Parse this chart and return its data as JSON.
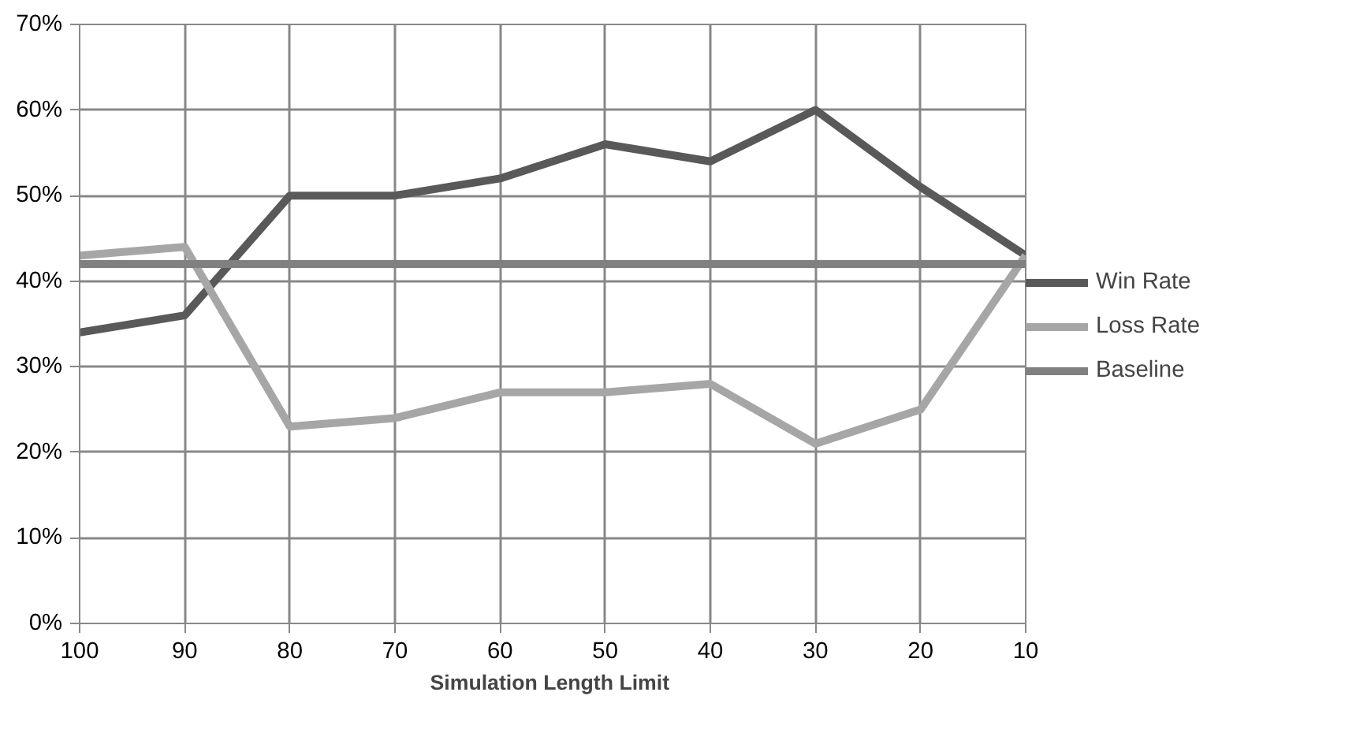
{
  "chart_data": {
    "type": "line",
    "xlabel": "Simulation  Length Limit",
    "categories": [
      "100",
      "90",
      "80",
      "70",
      "60",
      "50",
      "40",
      "30",
      "20",
      "10"
    ],
    "series": [
      {
        "name": "Win Rate",
        "color": "#595959",
        "values": [
          34,
          36,
          50,
          50,
          52,
          56,
          54,
          60,
          51,
          43
        ]
      },
      {
        "name": "Loss Rate",
        "color": "#a6a6a6",
        "values": [
          43,
          44,
          23,
          24,
          27,
          27,
          28,
          21,
          25,
          43
        ]
      },
      {
        "name": "Baseline",
        "color": "#808080",
        "values": [
          42,
          42,
          42,
          42,
          42,
          42,
          42,
          42,
          42,
          42
        ]
      }
    ],
    "ylim": [
      0,
      70
    ],
    "yticks": [
      {
        "value": 0,
        "label": "0%"
      },
      {
        "value": 10,
        "label": "10%"
      },
      {
        "value": 20,
        "label": "20%"
      },
      {
        "value": 30,
        "label": "30%"
      },
      {
        "value": 40,
        "label": "40%"
      },
      {
        "value": 50,
        "label": "50%"
      },
      {
        "value": 60,
        "label": "60%"
      },
      {
        "value": 70,
        "label": "70%"
      }
    ],
    "grid": true,
    "legend": "right",
    "marker": "none",
    "line_style": "solid"
  }
}
